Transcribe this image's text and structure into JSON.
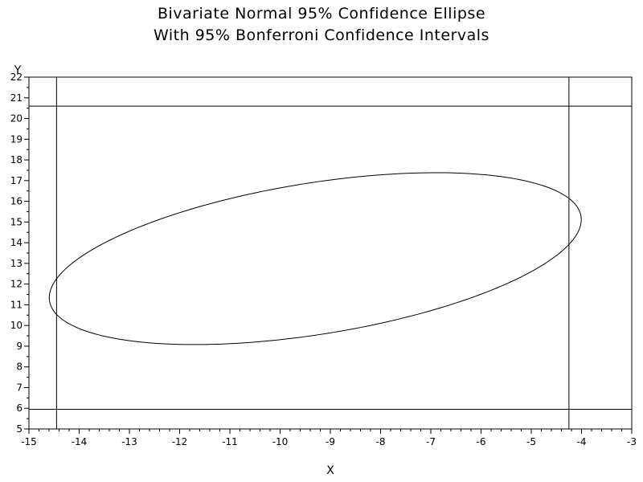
{
  "chart_data": {
    "type": "line",
    "title": "Bivariate Normal 95% Confidence Ellipse",
    "subtitle": "With 95% Bonferroni Confidence Intervals",
    "xlabel": "X",
    "ylabel": "Y",
    "xlim": [
      -15,
      -3
    ],
    "ylim": [
      5,
      22
    ],
    "xticks": [
      "-15",
      "-14",
      "-13",
      "-12",
      "-11",
      "-10",
      "-9",
      "-8",
      "-7",
      "-6",
      "-5",
      "-4",
      "-3"
    ],
    "yticks": [
      "5",
      "6",
      "7",
      "8",
      "9",
      "10",
      "11",
      "12",
      "13",
      "14",
      "15",
      "16",
      "17",
      "18",
      "19",
      "20",
      "21",
      "22"
    ],
    "grid": false,
    "legend": "none",
    "ellipse": {
      "center": [
        -9.3,
        13.23
      ],
      "semi_major": 5.83,
      "semi_minor": 3.36,
      "angle_deg": 30.8
    },
    "bonferroni_intervals": {
      "x_lower": -14.45,
      "x_upper": -4.25,
      "y_lower": 5.95,
      "y_upper": 20.6
    },
    "line_color": "#000000"
  }
}
